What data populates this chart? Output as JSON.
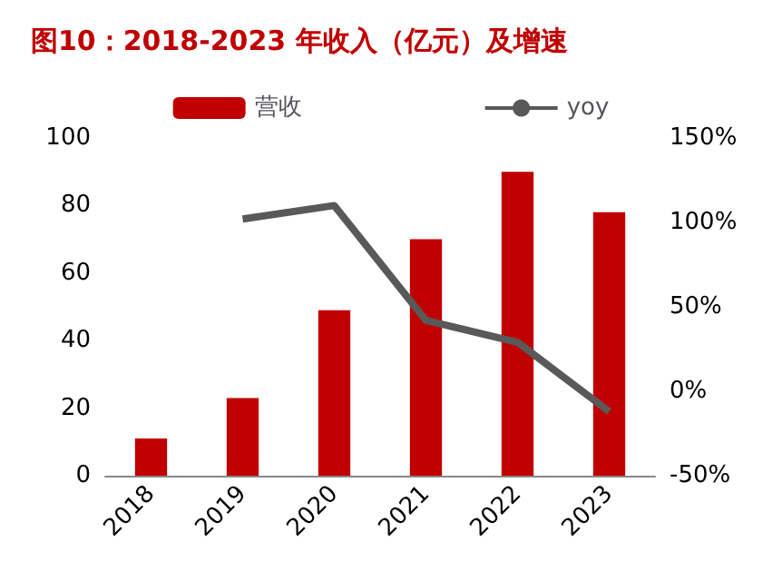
{
  "chart_data": {
    "type": "bar",
    "title": "图10：2018-2023 年收入（亿元）及增速",
    "categories": [
      "2018",
      "2019",
      "2020",
      "2021",
      "2022",
      "2023"
    ],
    "series": [
      {
        "name": "营收",
        "color": "#c00000",
        "values": [
          11,
          23,
          49,
          70,
          90,
          78
        ]
      },
      {
        "name": "yoy",
        "type": "line",
        "axis": "y2",
        "color": "#595959",
        "values": [
          null,
          102,
          110,
          42,
          29,
          -12
        ]
      }
    ],
    "ylim": [
      0,
      100
    ],
    "yticks": [
      0,
      20,
      40,
      60,
      80,
      100
    ],
    "y2lim": [
      -50,
      150
    ],
    "y2ticks": [
      {
        "value": -50,
        "label": "-50%"
      },
      {
        "value": 0,
        "label": "0%"
      },
      {
        "value": 50,
        "label": "50%"
      },
      {
        "value": 100,
        "label": "100%"
      },
      {
        "value": 150,
        "label": "150%"
      }
    ],
    "grid": false,
    "legend": "top",
    "marker": "none"
  }
}
